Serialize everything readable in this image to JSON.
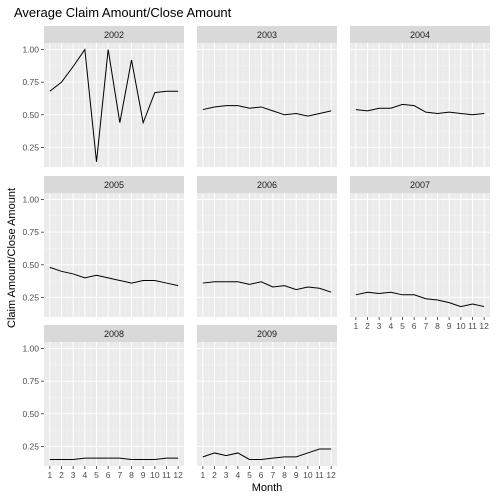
{
  "chart_data": {
    "type": "line",
    "title": "Average Claim Amount/Close Amount",
    "xlabel": "Month",
    "ylabel": "Claim Amount/Close Amount",
    "x": [
      1,
      2,
      3,
      4,
      5,
      6,
      7,
      8,
      9,
      10,
      11,
      12
    ],
    "x_tick_labels": [
      "1",
      "2",
      "3",
      "4",
      "5",
      "6",
      "7",
      "8",
      "9",
      "10",
      "11",
      "12"
    ],
    "y_ticks": [
      0.25,
      0.5,
      0.75,
      1.0
    ],
    "y_tick_labels": [
      "0.25",
      "0.50",
      "0.75",
      "1.00"
    ],
    "ylim": [
      0.1,
      1.05
    ],
    "xlim": [
      0.5,
      12.5
    ],
    "grid": true,
    "legend": "none",
    "facet_layout": {
      "ncol": 3,
      "nrow": 3
    },
    "panels": [
      {
        "name": "2002",
        "values": [
          0.68,
          0.75,
          0.87,
          1.0,
          0.14,
          1.0,
          0.44,
          0.92,
          0.44,
          0.67,
          0.68,
          0.68
        ]
      },
      {
        "name": "2003",
        "values": [
          0.54,
          0.56,
          0.57,
          0.57,
          0.55,
          0.56,
          0.53,
          0.5,
          0.51,
          0.49,
          0.51,
          0.53
        ]
      },
      {
        "name": "2004",
        "values": [
          0.54,
          0.53,
          0.55,
          0.55,
          0.58,
          0.57,
          0.52,
          0.51,
          0.52,
          0.51,
          0.5,
          0.51
        ]
      },
      {
        "name": "2005",
        "values": [
          0.48,
          0.45,
          0.43,
          0.4,
          0.42,
          0.4,
          0.38,
          0.36,
          0.38,
          0.38,
          0.36,
          0.34
        ]
      },
      {
        "name": "2006",
        "values": [
          0.36,
          0.37,
          0.37,
          0.37,
          0.35,
          0.37,
          0.33,
          0.34,
          0.31,
          0.33,
          0.32,
          0.29
        ]
      },
      {
        "name": "2007",
        "values": [
          0.27,
          0.29,
          0.28,
          0.29,
          0.27,
          0.27,
          0.24,
          0.23,
          0.21,
          0.18,
          0.2,
          0.18
        ]
      },
      {
        "name": "2008",
        "values": [
          0.15,
          0.15,
          0.15,
          0.16,
          0.16,
          0.16,
          0.16,
          0.15,
          0.15,
          0.15,
          0.16,
          0.16
        ]
      },
      {
        "name": "2009",
        "values": [
          0.17,
          0.2,
          0.18,
          0.2,
          0.15,
          0.15,
          0.16,
          0.17,
          0.17,
          0.2,
          0.23,
          0.23
        ]
      }
    ]
  }
}
